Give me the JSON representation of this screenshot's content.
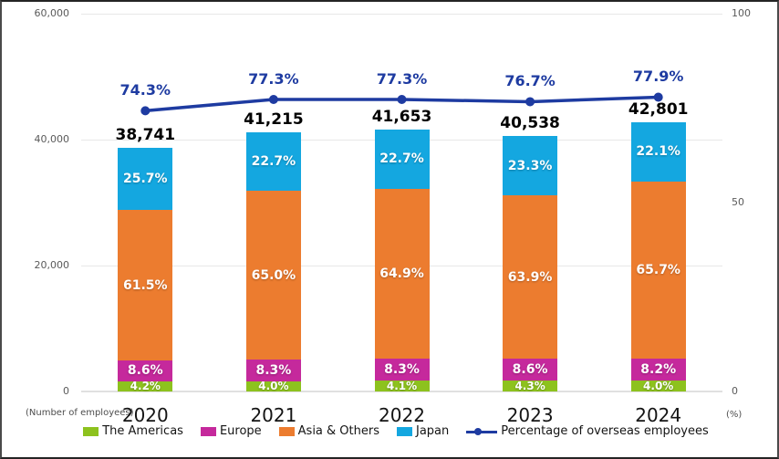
{
  "chart_data": {
    "type": "bar",
    "subtype": "stacked-bar-with-line",
    "title": "",
    "categories": [
      "2020",
      "2021",
      "2022",
      "2023",
      "2024"
    ],
    "totals": [
      38741,
      41215,
      41653,
      40538,
      42801
    ],
    "total_labels": [
      "38,741",
      "41,215",
      "41,653",
      "40,538",
      "42,801"
    ],
    "series": [
      {
        "name": "The Americas",
        "color": "#8dc21e",
        "values_pct": [
          4.2,
          4.0,
          4.1,
          4.3,
          4.0
        ],
        "labels": [
          "4.2%",
          "4.0%",
          "4.1%",
          "4.3%",
          "4.0%"
        ]
      },
      {
        "name": "Europe",
        "color": "#c5299c",
        "values_pct": [
          8.6,
          8.3,
          8.3,
          8.6,
          8.2
        ],
        "labels": [
          "8.6%",
          "8.3%",
          "8.3%",
          "8.6%",
          "8.2%"
        ]
      },
      {
        "name": "Asia & Others",
        "color": "#ec7c2f",
        "values_pct": [
          61.5,
          65.0,
          64.9,
          63.9,
          65.7
        ],
        "labels": [
          "61.5%",
          "65.0%",
          "64.9%",
          "63.9%",
          "65.7%"
        ]
      },
      {
        "name": "Japan",
        "color": "#14a7e0",
        "values_pct": [
          25.7,
          22.7,
          22.7,
          23.3,
          22.1
        ],
        "labels": [
          "25.7%",
          "22.7%",
          "22.7%",
          "23.3%",
          "22.1%"
        ]
      }
    ],
    "line_series": {
      "name": "Percentage of overseas employees",
      "color": "#1e3ba1",
      "values": [
        74.3,
        77.3,
        77.3,
        76.7,
        77.9
      ],
      "labels": [
        "74.3%",
        "77.3%",
        "77.3%",
        "76.7%",
        "77.9%"
      ]
    },
    "left_axis": {
      "label": "(Number of employees)",
      "max": 60000,
      "ticks": [
        {
          "value": 0,
          "label": "0"
        },
        {
          "value": 20000,
          "label": "20,000"
        },
        {
          "value": 40000,
          "label": "40,000"
        },
        {
          "value": 60000,
          "label": "60,000"
        }
      ]
    },
    "right_axis": {
      "label": "(%)",
      "max": 100,
      "ticks": [
        {
          "value": 0,
          "label": "0"
        },
        {
          "value": 50,
          "label": "50"
        },
        {
          "value": 100,
          "label": "100"
        }
      ]
    },
    "grid": true,
    "legend_position": "bottom"
  }
}
